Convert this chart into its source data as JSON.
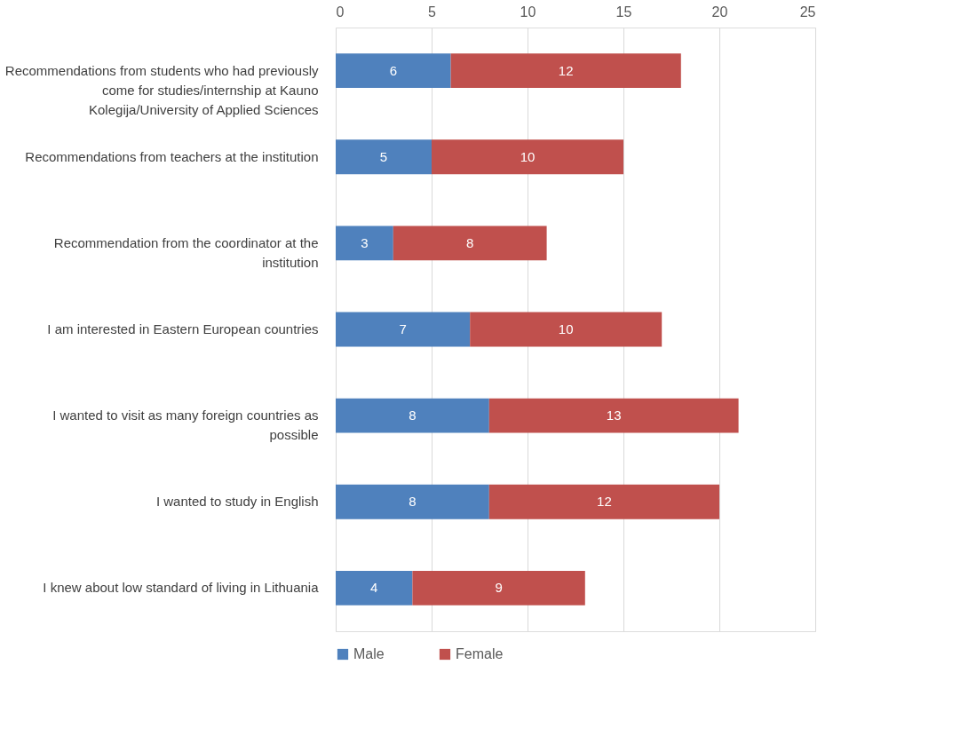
{
  "chart_data": {
    "type": "bar",
    "orientation": "horizontal",
    "stacked": true,
    "categories": [
      "Recommendations from students who had previously come for studies/internship at Kauno Kolegija/University of Applied Sciences",
      "Recommendations from teachers at the institution",
      "Recommendation from the coordinator at the institution",
      "I am interested in Eastern European countries",
      "I wanted to visit as many foreign countries as possible",
      "I wanted to study in English",
      "I knew about low standard of living in Lithuania"
    ],
    "series": [
      {
        "name": "Male",
        "color": "#4f81bd",
        "values": [
          6,
          5,
          3,
          7,
          8,
          8,
          4
        ]
      },
      {
        "name": "Female",
        "color": "#c0504d",
        "values": [
          12,
          10,
          8,
          10,
          13,
          12,
          9
        ]
      }
    ],
    "xlim": [
      0,
      25
    ],
    "xticks": [
      0,
      5,
      10,
      15,
      20,
      25
    ],
    "grid": "x",
    "legend": "bottom",
    "data_labels": true
  }
}
